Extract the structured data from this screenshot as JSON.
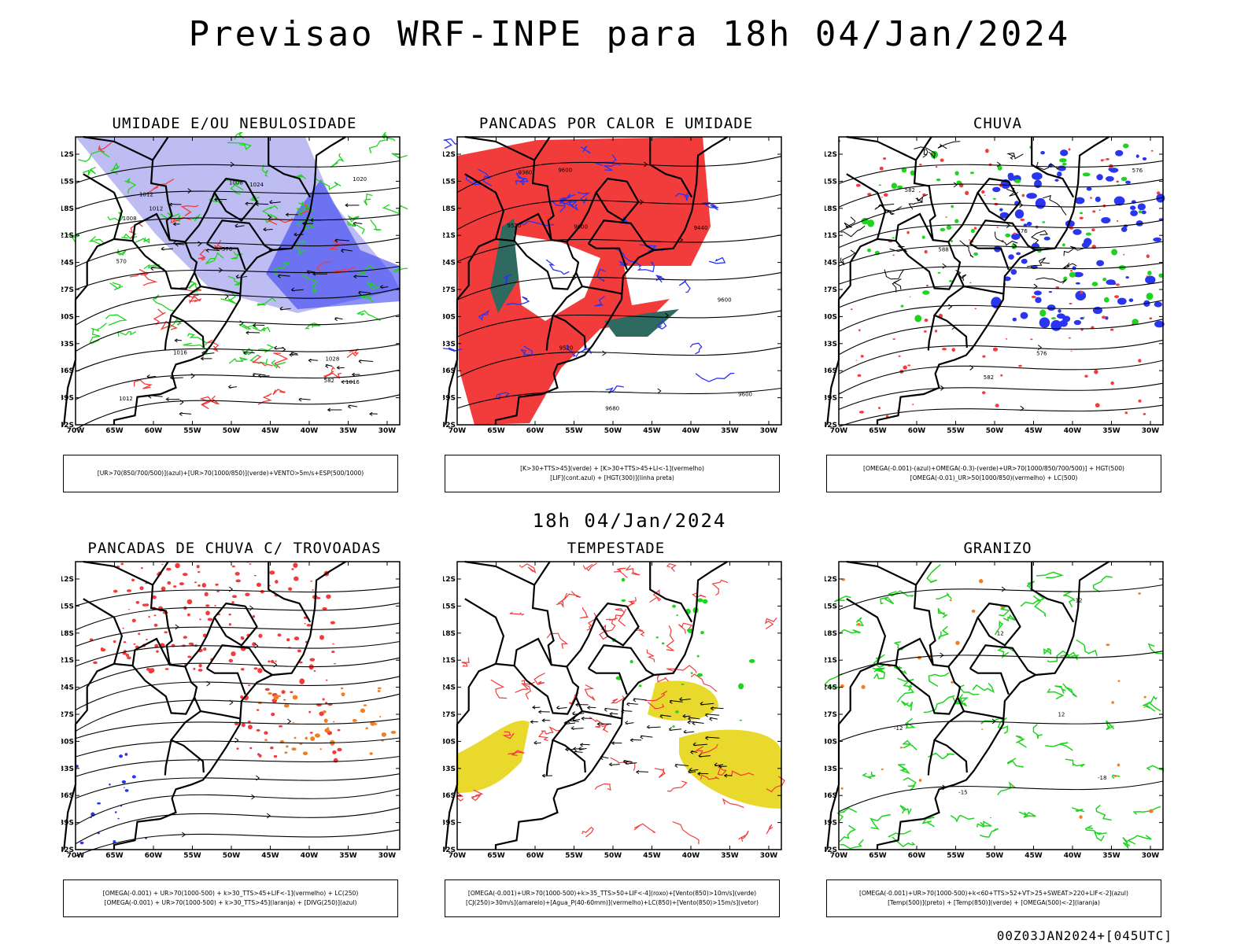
{
  "header": {
    "title": "Previsao WRF-INPE  para 18h 04/Jan/2024"
  },
  "mid_title": "18h 04/Jan/2024",
  "footer": "00Z03JAN2024+[045UTC]",
  "axes": {
    "lat_ticks": [
      "12S",
      "15S",
      "18S",
      "21S",
      "24S",
      "27S",
      "30S",
      "33S",
      "36S",
      "39S",
      "42S"
    ],
    "lon_ticks": [
      "70W",
      "65W",
      "60W",
      "55W",
      "50W",
      "45W",
      "40W",
      "35W",
      "30W"
    ]
  },
  "colors": {
    "red": "#f23c3c",
    "green": "#1fd41f",
    "blue": "#2a35f0",
    "lavender": "#b2b2f2",
    "teal": "#2e6a5f",
    "yellow": "#e8d92c",
    "orange": "#ef7f24"
  },
  "panels": [
    {
      "title": "UMIDADE E/OU NEBULOSIDADE",
      "legend": [
        "[UR>70(850/700/500)](azul)+[UR>70(1000/850)](verde)+VENTO>5m/s+ESP(500/1000)"
      ],
      "contour_labels": [
        "1008",
        "1008",
        "1012",
        "1012",
        "1016",
        "1016",
        "1020",
        "1024",
        "1028",
        "1012",
        "570",
        "576",
        "582"
      ]
    },
    {
      "title": "PANCADAS POR CALOR E UMIDADE",
      "legend": [
        "[K>30+TTS>45](verde) + [K>30+TTS>45+LI<-1](vermelho)",
        "[LIF](cont.azul) + [HGT(300)](linha preta)"
      ],
      "contour_labels": [
        "9600",
        "9600",
        "9600",
        "9520",
        "9440",
        "9360",
        "9520",
        "9600",
        "9680"
      ]
    },
    {
      "title": "CHUVA",
      "legend": [
        "[OMEGA(-0.001)-(azul)+OMEGA(-0.3)-(verde)+UR>70(1000/850/700/500)] + HGT(500)",
        "[OMEGA(-0.01)_UR>50(1000/850)(vermelho) + LC(500)"
      ],
      "contour_labels": [
        "576",
        "582",
        "588",
        "576",
        "576",
        "582"
      ]
    },
    {
      "title": "PANCADAS DE CHUVA C/ TROVOADAS",
      "legend": [
        "[OMEGA(-0.001) + UR>70(1000-500) + k>30_TTS>45+LIF<-1](vermelho) + LC(250)",
        "[OMEGA(-0.001) + UR>70(1000-500) + k>30_TTS>45](laranja) + [DIVG(250)](azul)"
      ],
      "contour_labels": []
    },
    {
      "title": "TEMPESTADE",
      "legend": [
        "[OMEGA(-0.001)+UR>70(1000-500)+k>35_TTS>50+LIF<-4](roxo)+[Vento(850)>10m/s](verde)",
        "[CJ(250)>30m/s](amarelo)+[Agua_P(40-60mm)](vermelho)+LC(850)+[Vento(850)>15m/s](vetor)"
      ],
      "contour_labels": []
    },
    {
      "title": "GRANIZO",
      "legend": [
        "[OMEGA(-0.001)+UR>70(1000-500)+k<60+TTS>52+VT>25+SWEAT>220+LIF<-2](azul)",
        "[Temp(500)](preto) + [Temp(850)](verde) + [OMEGA(500)<-2](laranja)"
      ],
      "contour_labels": [
        "-12",
        "-12",
        "-15",
        "-18",
        "12",
        "12"
      ]
    }
  ]
}
